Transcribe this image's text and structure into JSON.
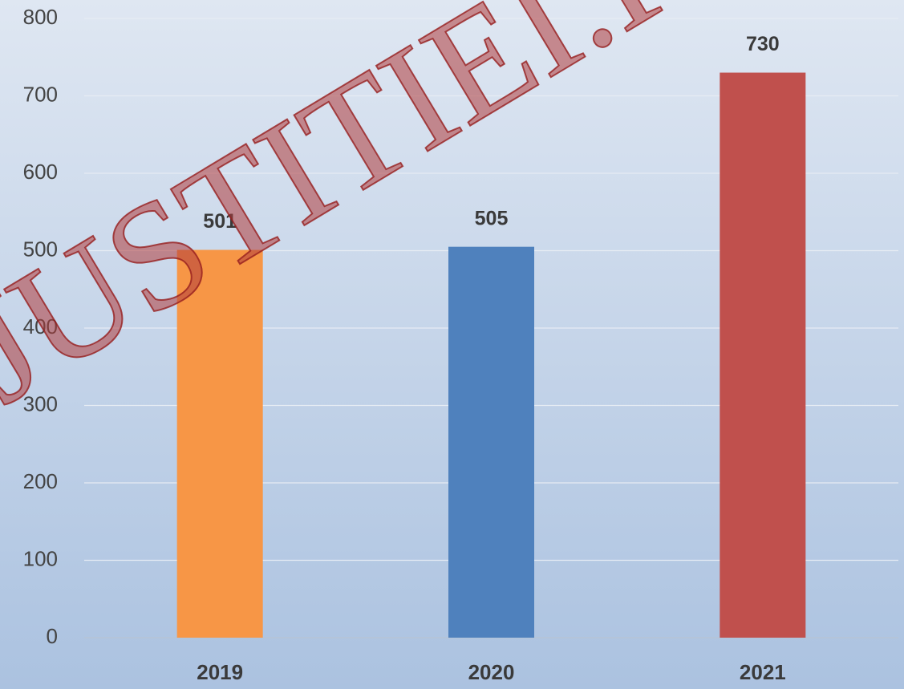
{
  "chart_data": {
    "type": "bar",
    "categories": [
      "2019",
      "2020",
      "2021"
    ],
    "values": [
      501,
      505,
      730
    ],
    "colors": [
      "#f79646",
      "#4f81bd",
      "#c0504d"
    ],
    "ylim": [
      0,
      800
    ],
    "yticks": [
      0,
      100,
      200,
      300,
      400,
      500,
      600,
      700,
      800
    ],
    "grid": true,
    "watermark": "JUSTITIEI.R"
  }
}
